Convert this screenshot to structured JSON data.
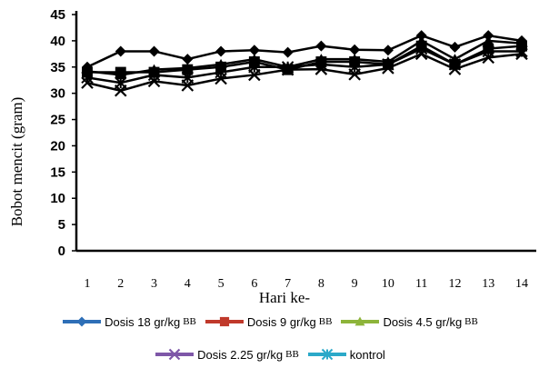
{
  "chart_data": {
    "type": "line",
    "title": "",
    "xlabel": "Hari ke-",
    "ylabel": "Bobot mencit (gram)",
    "categories": [
      "1",
      "2",
      "3",
      "4",
      "5",
      "6",
      "7",
      "8",
      "9",
      "10",
      "11",
      "12",
      "13",
      "14"
    ],
    "ylim": [
      0,
      45
    ],
    "yticks": [
      "0",
      "5",
      "10",
      "15",
      "20",
      "25",
      "30",
      "35",
      "40",
      "45"
    ],
    "grid": false,
    "legend_position": "bottom",
    "series": [
      {
        "name": "Dosis 18 gr/kg",
        "unit": "BB",
        "color": "#2E6FB7",
        "marker": "diamond",
        "values": [
          35,
          38,
          38,
          36.5,
          38,
          38.2,
          37.8,
          39,
          38.3,
          38.2,
          41,
          38.8,
          41,
          40
        ]
      },
      {
        "name": "Dosis 9 gr/kg",
        "unit": "BB",
        "color": "#C0392B",
        "marker": "square",
        "values": [
          34,
          34,
          34,
          34.5,
          35,
          36,
          34.5,
          36,
          36,
          35.5,
          39,
          35.5,
          38.5,
          39
        ]
      },
      {
        "name": "Dosis 4.5 gr/kg",
        "unit": "BB",
        "color": "#8DB43A",
        "marker": "triangle",
        "values": [
          34.2,
          33.5,
          34.5,
          34.8,
          35.5,
          36.5,
          35,
          36.5,
          36.5,
          36,
          40,
          36.5,
          40,
          39.5
        ]
      },
      {
        "name": "Dosis 2.25 gr/kg",
        "unit": "BB",
        "color": "#7E57A8",
        "marker": "x",
        "values": [
          32,
          30.5,
          32.3,
          31.5,
          32.8,
          33.5,
          34.5,
          34.6,
          33.6,
          34.8,
          37.5,
          34.6,
          36.8,
          37.5
        ]
      },
      {
        "name": "kontrol",
        "unit": "",
        "color": "#2BA9C9",
        "marker": "asterisk",
        "values": [
          33,
          32,
          33.5,
          33,
          34,
          35,
          35,
          35.5,
          35,
          35.5,
          38.5,
          35.5,
          38,
          38
        ]
      }
    ]
  }
}
